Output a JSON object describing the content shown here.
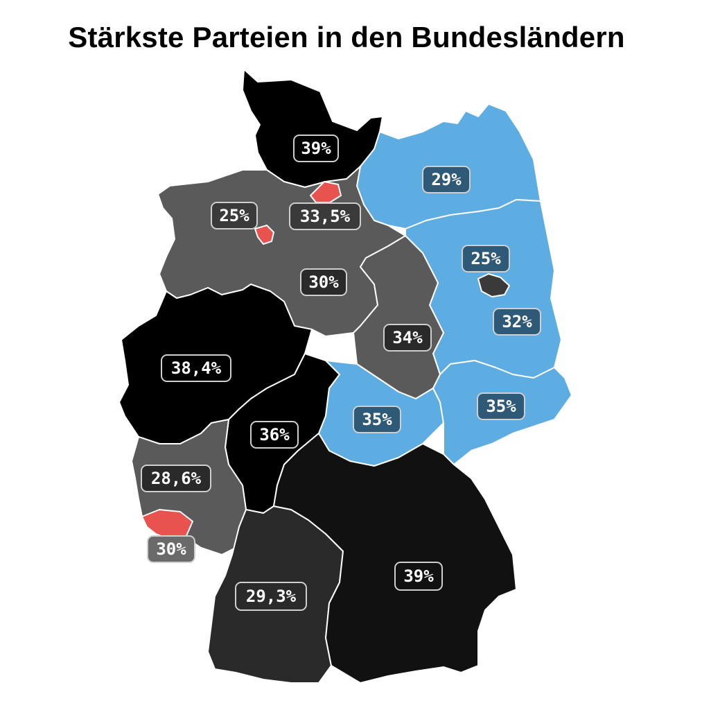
{
  "title": "Stärkste Parteien in den Bundesländern",
  "colors": {
    "black": "#000000",
    "dark": "#2a2a2a",
    "grey": "#5a5a5a",
    "blue": "#5dade2",
    "red": "#e8524f",
    "label_on_blue": "#2e5a78"
  },
  "states": [
    {
      "id": "schleswig-holstein",
      "value": "39%",
      "color": "#000000"
    },
    {
      "id": "hamburg",
      "value": "33,5%",
      "color": "#e8524f"
    },
    {
      "id": "mecklenburg-vorpommern",
      "value": "29%",
      "color": "#5dade2"
    },
    {
      "id": "bremen",
      "value": "25%",
      "color": "#e8524f"
    },
    {
      "id": "niedersachsen",
      "value": "30%",
      "color": "#5a5a5a"
    },
    {
      "id": "brandenburg",
      "value": "32%",
      "color": "#5dade2"
    },
    {
      "id": "berlin",
      "value": "25%",
      "color": "#3a3a3a"
    },
    {
      "id": "sachsen-anhalt",
      "value": "34%",
      "color": "#5a5a5a"
    },
    {
      "id": "nordrhein-westfalen",
      "value": "38,4%",
      "color": "#000000"
    },
    {
      "id": "hessen",
      "value": "36%",
      "color": "#000000"
    },
    {
      "id": "thueringen",
      "value": "35%",
      "color": "#5dade2"
    },
    {
      "id": "sachsen",
      "value": "35%",
      "color": "#5dade2"
    },
    {
      "id": "rheinland-pfalz",
      "value": "28,6%",
      "color": "#5a5a5a"
    },
    {
      "id": "saarland",
      "value": "30%",
      "color": "#e8524f"
    },
    {
      "id": "baden-wuerttemberg",
      "value": "29,3%",
      "color": "#2a2a2a"
    },
    {
      "id": "bayern",
      "value": "39%",
      "color": "#111111"
    }
  ]
}
